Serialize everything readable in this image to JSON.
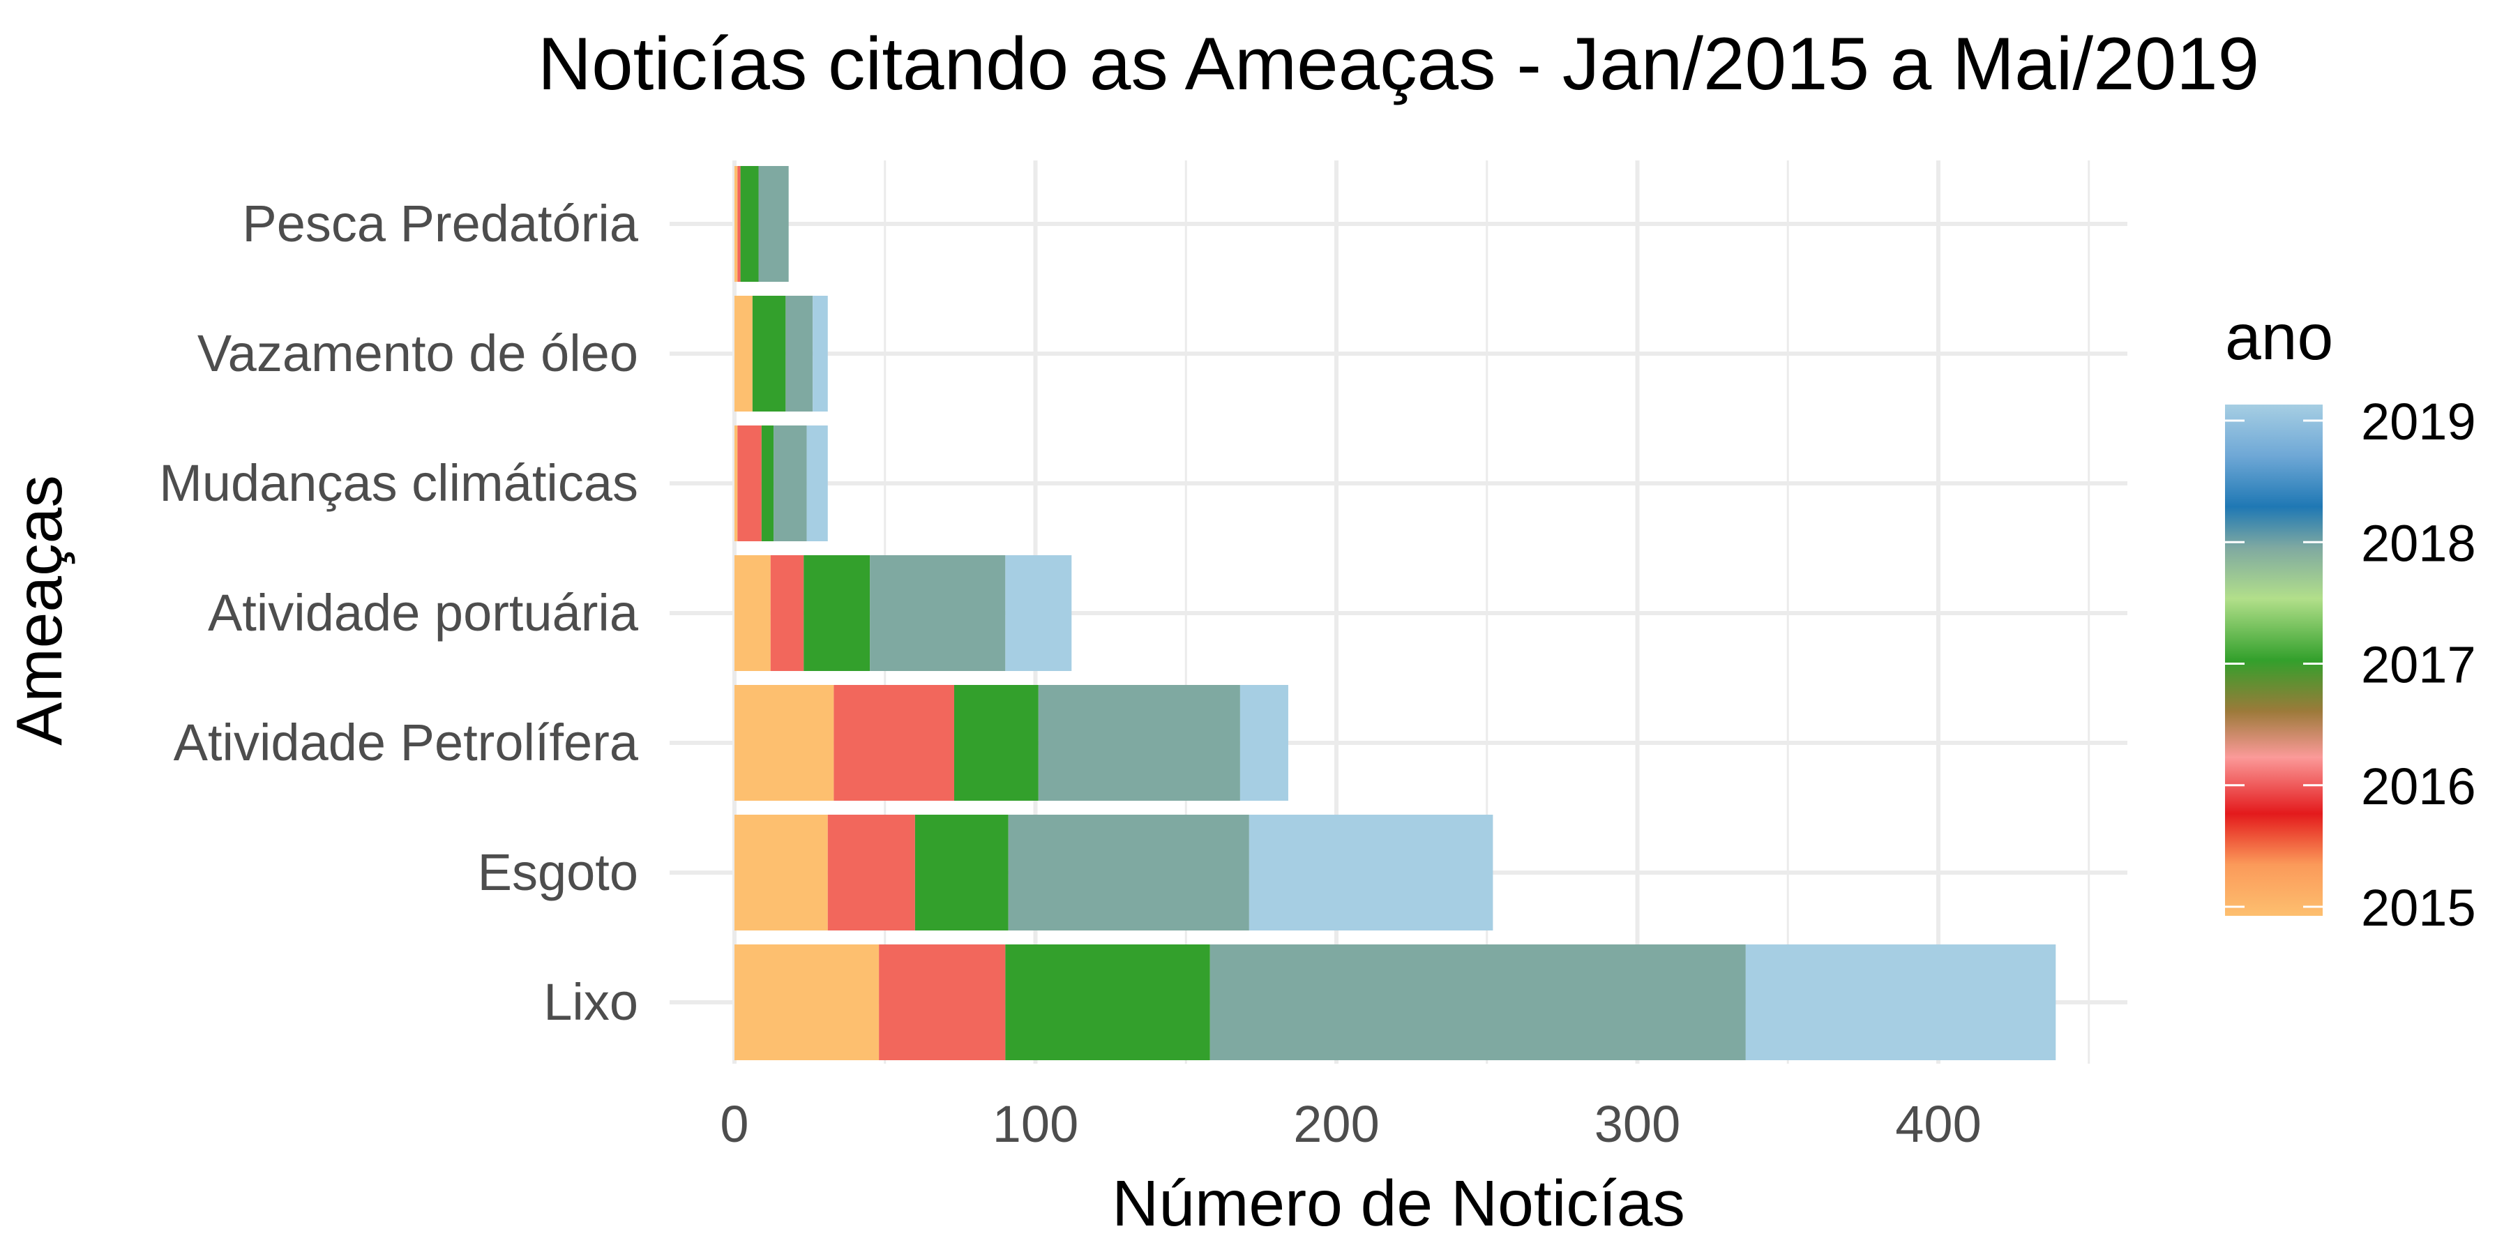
{
  "chart_data": {
    "type": "bar",
    "orientation": "horizontal",
    "stacked": true,
    "title": "Noticías citando as Ameaças - Jan/2015 a Mai/2019",
    "xlabel": "Número de Noticías",
    "ylabel": "Ameaças",
    "xlim": [
      0,
      460
    ],
    "x_ticks": [
      0,
      100,
      200,
      300,
      400
    ],
    "x_tick_labels": [
      "0",
      "100",
      "200",
      "300",
      "400"
    ],
    "grid": true,
    "categories": [
      "Lixo",
      "Esgoto",
      "Atividade Petrolífera",
      "Atividade portuária",
      "Mudanças climáticas",
      "Vazamento de óleo",
      "Pesca Predatória"
    ],
    "series": [
      {
        "name": "2015",
        "color": "#FDBF6F",
        "values": [
          48,
          31,
          33,
          12,
          1,
          6,
          1
        ]
      },
      {
        "name": "2016",
        "color": "#F2675C",
        "values": [
          42,
          29,
          40,
          11,
          8,
          0,
          1
        ]
      },
      {
        "name": "2017",
        "color": "#33A02C",
        "values": [
          68,
          31,
          28,
          22,
          4,
          11,
          6
        ]
      },
      {
        "name": "2018",
        "color": "#7FA9A1",
        "values": [
          178,
          80,
          67,
          45,
          11,
          9,
          10
        ]
      },
      {
        "name": "2019",
        "color": "#A6CEE3",
        "values": [
          103,
          81,
          16,
          22,
          7,
          5,
          0
        ]
      }
    ],
    "legend": {
      "title": "ano",
      "placement": "right",
      "labels": [
        "2019",
        "2018",
        "2017",
        "2016",
        "2015"
      ]
    }
  }
}
